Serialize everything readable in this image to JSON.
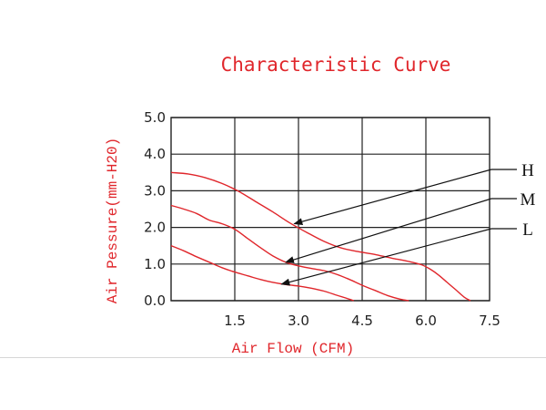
{
  "chart_data": {
    "type": "line",
    "title": "Characteristic Curve",
    "xlabel": "Air Flow (CFM)",
    "ylabel": "Air Pessure(mm-H20)",
    "xlim": [
      0,
      7.5
    ],
    "ylim": [
      0,
      5.0
    ],
    "x_ticks": [
      "1.5",
      "3.0",
      "4.5",
      "6.0",
      "7.5"
    ],
    "y_ticks": [
      "0.0",
      "1.0",
      "2.0",
      "3.0",
      "4.0",
      "5.0"
    ],
    "grid": true,
    "series_color": "#e0262b",
    "series": [
      {
        "name": "H",
        "x": [
          0,
          0.4,
          0.8,
          1.2,
          1.6,
          2.0,
          2.4,
          2.8,
          3.2,
          3.6,
          4.0,
          4.4,
          4.8,
          5.2,
          5.6,
          5.9,
          6.1,
          6.3,
          6.5,
          6.7,
          6.9,
          7.05
        ],
        "y": [
          3.5,
          3.46,
          3.36,
          3.2,
          2.98,
          2.7,
          2.42,
          2.12,
          1.86,
          1.62,
          1.44,
          1.34,
          1.26,
          1.16,
          1.07,
          0.98,
          0.86,
          0.7,
          0.5,
          0.3,
          0.1,
          0.0
        ]
      },
      {
        "name": "M",
        "x": [
          0,
          0.3,
          0.6,
          0.9,
          1.2,
          1.5,
          1.8,
          2.1,
          2.4,
          2.7,
          3.0,
          3.3,
          3.6,
          3.9,
          4.2,
          4.5,
          4.8,
          5.1,
          5.4,
          5.6
        ],
        "y": [
          2.6,
          2.5,
          2.38,
          2.2,
          2.1,
          1.95,
          1.7,
          1.45,
          1.22,
          1.05,
          0.95,
          0.88,
          0.82,
          0.72,
          0.58,
          0.42,
          0.28,
          0.14,
          0.04,
          0.0
        ]
      },
      {
        "name": "L",
        "x": [
          0,
          0.3,
          0.6,
          0.9,
          1.2,
          1.5,
          1.8,
          2.1,
          2.4,
          2.7,
          3.0,
          3.3,
          3.6,
          3.9,
          4.2,
          4.3
        ],
        "y": [
          1.5,
          1.36,
          1.2,
          1.05,
          0.9,
          0.78,
          0.68,
          0.58,
          0.5,
          0.44,
          0.4,
          0.34,
          0.26,
          0.15,
          0.04,
          0.0
        ]
      }
    ],
    "annotations": [
      {
        "label": "H",
        "point": [
          2.9,
          2.1
        ]
      },
      {
        "label": "M",
        "point": [
          2.7,
          1.05
        ]
      },
      {
        "label": "L",
        "point": [
          2.6,
          0.45
        ]
      }
    ]
  }
}
